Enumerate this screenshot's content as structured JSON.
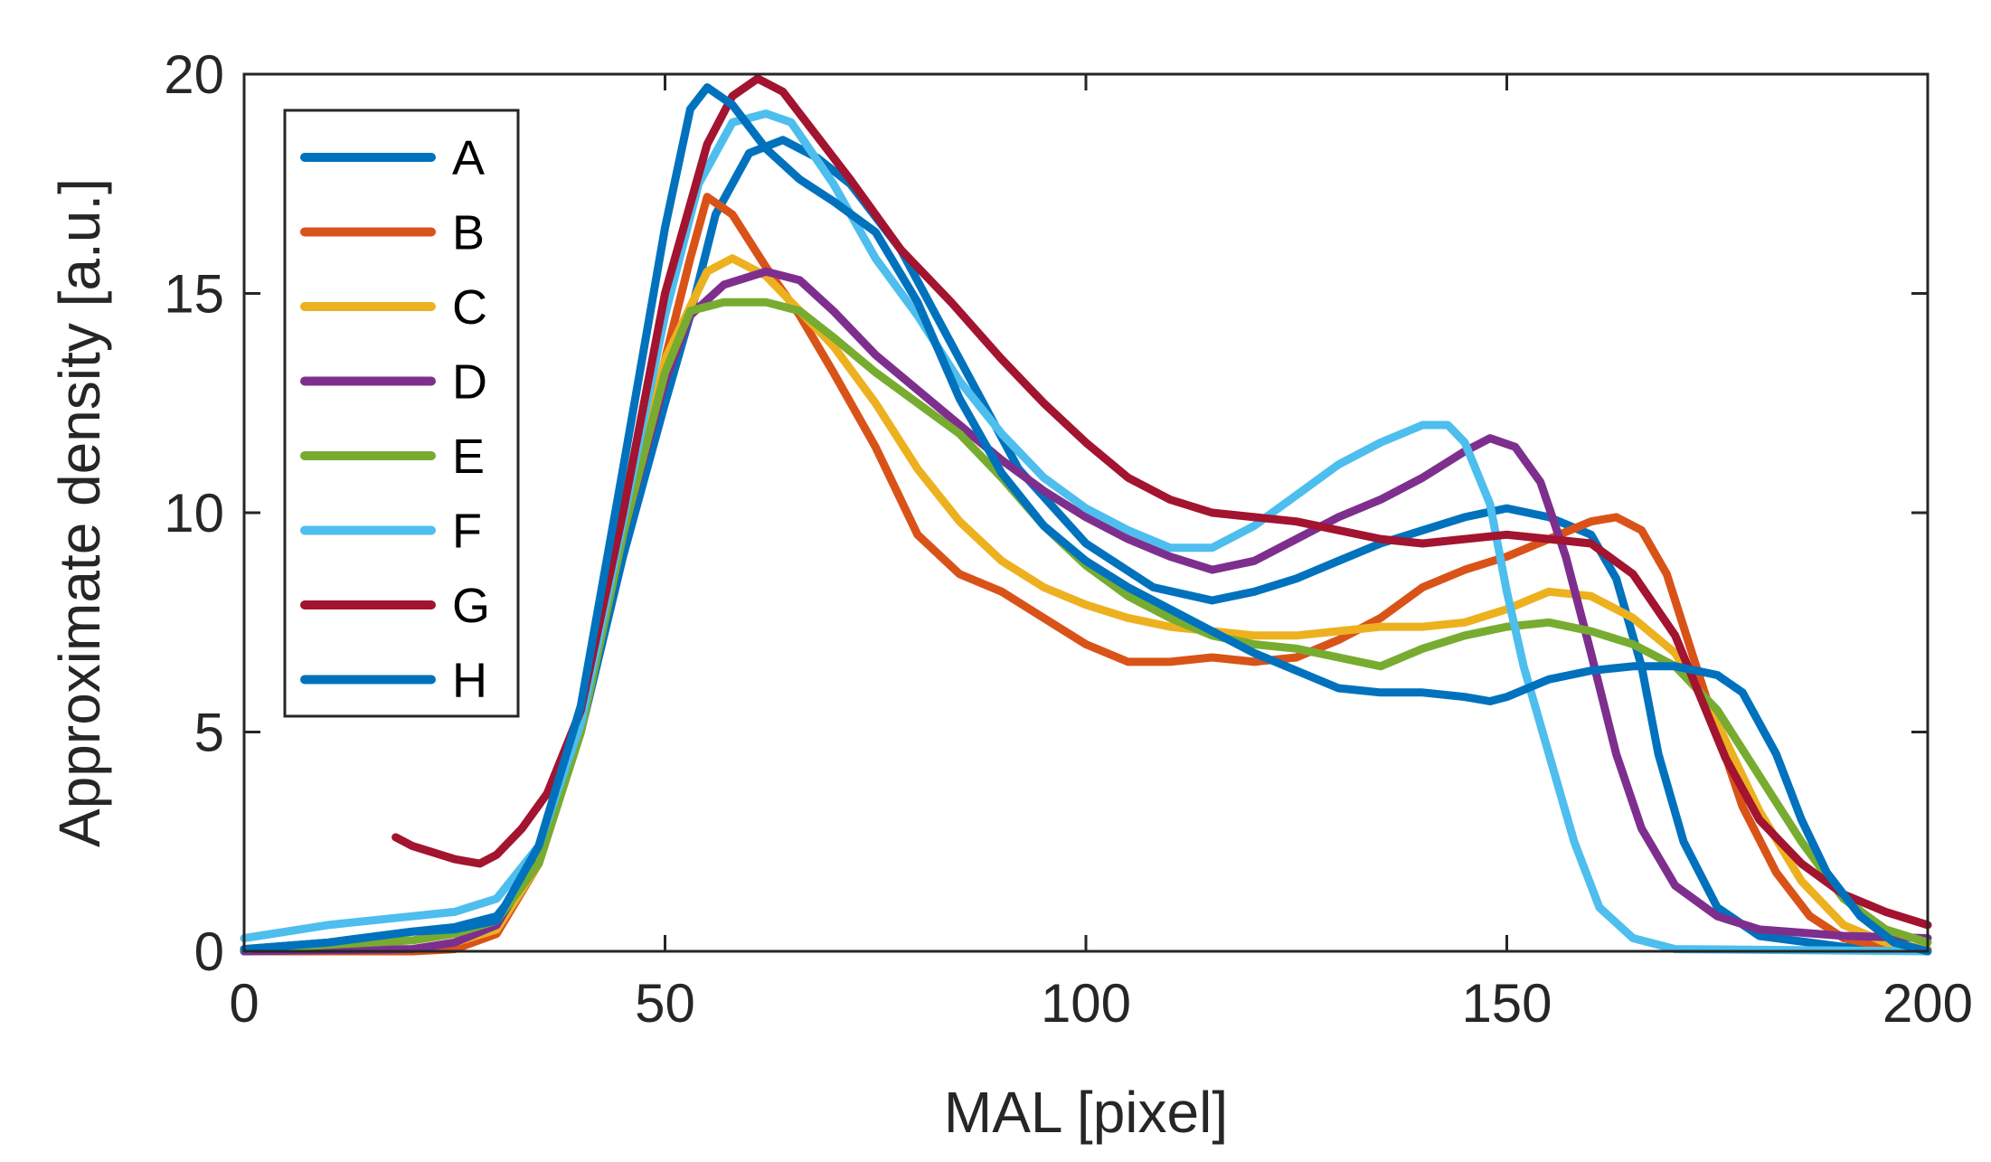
{
  "chart_data": {
    "type": "line",
    "xlabel": "MAL [pixel]",
    "ylabel": "Approximate density [a.u.]",
    "xlim": [
      0,
      200
    ],
    "ylim": [
      0,
      20
    ],
    "xticks": [
      "0",
      "50",
      "100",
      "150",
      "200"
    ],
    "yticks": [
      "0",
      "5",
      "10",
      "15",
      "20"
    ],
    "grid": false,
    "box": true,
    "legend_position": "top-left",
    "series": [
      {
        "name": "A",
        "color": "#0072BD",
        "points": [
          [
            0,
            0.05
          ],
          [
            10,
            0.2
          ],
          [
            20,
            0.45
          ],
          [
            25,
            0.55
          ],
          [
            30,
            0.8
          ],
          [
            35,
            2
          ],
          [
            40,
            5
          ],
          [
            45,
            9
          ],
          [
            50,
            12.5
          ],
          [
            53,
            14.5
          ],
          [
            56,
            16.8
          ],
          [
            60,
            18.2
          ],
          [
            64,
            18.5
          ],
          [
            68,
            18.1
          ],
          [
            72,
            17.5
          ],
          [
            78,
            16
          ],
          [
            85,
            13.5
          ],
          [
            92,
            11
          ],
          [
            100,
            9.3
          ],
          [
            108,
            8.3
          ],
          [
            115,
            8.0
          ],
          [
            120,
            8.2
          ],
          [
            125,
            8.5
          ],
          [
            130,
            8.9
          ],
          [
            135,
            9.3
          ],
          [
            140,
            9.6
          ],
          [
            145,
            9.9
          ],
          [
            150,
            10.1
          ],
          [
            155,
            9.9
          ],
          [
            160,
            9.5
          ],
          [
            163,
            8.5
          ],
          [
            166,
            6.5
          ],
          [
            168,
            4.5
          ],
          [
            171,
            2.5
          ],
          [
            175,
            1.0
          ],
          [
            180,
            0.35
          ],
          [
            190,
            0.1
          ],
          [
            200,
            0.05
          ]
        ]
      },
      {
        "name": "B",
        "color": "#D95319",
        "points": [
          [
            0,
            0
          ],
          [
            20,
            0
          ],
          [
            25,
            0.05
          ],
          [
            30,
            0.4
          ],
          [
            35,
            2
          ],
          [
            40,
            5
          ],
          [
            45,
            9.5
          ],
          [
            50,
            13.5
          ],
          [
            53,
            15.8
          ],
          [
            55,
            17.2
          ],
          [
            58,
            16.8
          ],
          [
            62,
            15.6
          ],
          [
            66,
            14.5
          ],
          [
            70,
            13.2
          ],
          [
            75,
            11.5
          ],
          [
            80,
            9.5
          ],
          [
            85,
            8.6
          ],
          [
            90,
            8.2
          ],
          [
            95,
            7.6
          ],
          [
            100,
            7.0
          ],
          [
            105,
            6.6
          ],
          [
            110,
            6.6
          ],
          [
            115,
            6.7
          ],
          [
            120,
            6.6
          ],
          [
            125,
            6.7
          ],
          [
            130,
            7.1
          ],
          [
            135,
            7.6
          ],
          [
            140,
            8.3
          ],
          [
            145,
            8.7
          ],
          [
            150,
            9.0
          ],
          [
            155,
            9.4
          ],
          [
            160,
            9.8
          ],
          [
            163,
            9.9
          ],
          [
            166,
            9.6
          ],
          [
            169,
            8.6
          ],
          [
            172,
            6.8
          ],
          [
            175,
            5.0
          ],
          [
            178,
            3.3
          ],
          [
            182,
            1.8
          ],
          [
            186,
            0.8
          ],
          [
            190,
            0.3
          ],
          [
            195,
            0.1
          ],
          [
            200,
            0.05
          ]
        ]
      },
      {
        "name": "C",
        "color": "#EDB120",
        "points": [
          [
            0,
            0
          ],
          [
            20,
            0.05
          ],
          [
            25,
            0.2
          ],
          [
            30,
            0.5
          ],
          [
            35,
            2
          ],
          [
            40,
            5
          ],
          [
            45,
            9.5
          ],
          [
            50,
            13.5
          ],
          [
            55,
            15.5
          ],
          [
            58,
            15.8
          ],
          [
            62,
            15.4
          ],
          [
            66,
            14.6
          ],
          [
            70,
            13.8
          ],
          [
            75,
            12.5
          ],
          [
            80,
            11
          ],
          [
            85,
            9.8
          ],
          [
            90,
            8.9
          ],
          [
            95,
            8.3
          ],
          [
            100,
            7.9
          ],
          [
            105,
            7.6
          ],
          [
            110,
            7.4
          ],
          [
            115,
            7.3
          ],
          [
            120,
            7.2
          ],
          [
            125,
            7.2
          ],
          [
            130,
            7.3
          ],
          [
            135,
            7.4
          ],
          [
            140,
            7.4
          ],
          [
            145,
            7.5
          ],
          [
            150,
            7.8
          ],
          [
            155,
            8.2
          ],
          [
            160,
            8.1
          ],
          [
            165,
            7.6
          ],
          [
            170,
            6.8
          ],
          [
            175,
            5.2
          ],
          [
            180,
            3.2
          ],
          [
            185,
            1.6
          ],
          [
            190,
            0.6
          ],
          [
            195,
            0.2
          ],
          [
            200,
            0.05
          ]
        ]
      },
      {
        "name": "D",
        "color": "#7E2F8E",
        "points": [
          [
            0,
            0
          ],
          [
            20,
            0.05
          ],
          [
            25,
            0.2
          ],
          [
            30,
            0.6
          ],
          [
            35,
            2.2
          ],
          [
            40,
            5.2
          ],
          [
            45,
            9.5
          ],
          [
            50,
            13
          ],
          [
            53,
            14.5
          ],
          [
            57,
            15.2
          ],
          [
            62,
            15.5
          ],
          [
            66,
            15.3
          ],
          [
            70,
            14.6
          ],
          [
            75,
            13.6
          ],
          [
            80,
            12.8
          ],
          [
            85,
            12
          ],
          [
            90,
            11.2
          ],
          [
            95,
            10.5
          ],
          [
            100,
            9.9
          ],
          [
            105,
            9.4
          ],
          [
            110,
            9.0
          ],
          [
            115,
            8.7
          ],
          [
            120,
            8.9
          ],
          [
            125,
            9.4
          ],
          [
            130,
            9.9
          ],
          [
            135,
            10.3
          ],
          [
            140,
            10.8
          ],
          [
            145,
            11.4
          ],
          [
            148,
            11.7
          ],
          [
            151,
            11.5
          ],
          [
            154,
            10.7
          ],
          [
            157,
            9.0
          ],
          [
            160,
            6.8
          ],
          [
            163,
            4.5
          ],
          [
            166,
            2.8
          ],
          [
            170,
            1.5
          ],
          [
            175,
            0.8
          ],
          [
            180,
            0.5
          ],
          [
            190,
            0.35
          ],
          [
            200,
            0.3
          ]
        ]
      },
      {
        "name": "E",
        "color": "#77AC30",
        "points": [
          [
            0,
            0.05
          ],
          [
            20,
            0.25
          ],
          [
            25,
            0.4
          ],
          [
            30,
            0.7
          ],
          [
            35,
            2
          ],
          [
            40,
            5
          ],
          [
            45,
            9.5
          ],
          [
            50,
            13.2
          ],
          [
            53,
            14.6
          ],
          [
            57,
            14.8
          ],
          [
            62,
            14.8
          ],
          [
            66,
            14.6
          ],
          [
            70,
            14
          ],
          [
            75,
            13.2
          ],
          [
            80,
            12.5
          ],
          [
            85,
            11.8
          ],
          [
            90,
            10.8
          ],
          [
            95,
            9.7
          ],
          [
            100,
            8.8
          ],
          [
            105,
            8.1
          ],
          [
            110,
            7.6
          ],
          [
            115,
            7.2
          ],
          [
            120,
            7.0
          ],
          [
            125,
            6.9
          ],
          [
            130,
            6.7
          ],
          [
            135,
            6.5
          ],
          [
            140,
            6.9
          ],
          [
            145,
            7.2
          ],
          [
            150,
            7.4
          ],
          [
            155,
            7.5
          ],
          [
            160,
            7.3
          ],
          [
            165,
            7.0
          ],
          [
            170,
            6.5
          ],
          [
            175,
            5.5
          ],
          [
            180,
            4.0
          ],
          [
            185,
            2.5
          ],
          [
            190,
            1.2
          ],
          [
            195,
            0.5
          ],
          [
            200,
            0.2
          ]
        ]
      },
      {
        "name": "F",
        "color": "#4DBEEE",
        "points": [
          [
            0,
            0.3
          ],
          [
            10,
            0.6
          ],
          [
            20,
            0.8
          ],
          [
            25,
            0.9
          ],
          [
            30,
            1.2
          ],
          [
            35,
            2.4
          ],
          [
            40,
            5.2
          ],
          [
            45,
            9.8
          ],
          [
            50,
            14.5
          ],
          [
            54,
            17.5
          ],
          [
            58,
            18.9
          ],
          [
            62,
            19.1
          ],
          [
            65,
            18.9
          ],
          [
            70,
            17.5
          ],
          [
            75,
            15.8
          ],
          [
            80,
            14.5
          ],
          [
            85,
            13
          ],
          [
            90,
            11.8
          ],
          [
            95,
            10.8
          ],
          [
            100,
            10.1
          ],
          [
            105,
            9.6
          ],
          [
            110,
            9.2
          ],
          [
            115,
            9.2
          ],
          [
            120,
            9.7
          ],
          [
            125,
            10.4
          ],
          [
            130,
            11.1
          ],
          [
            135,
            11.6
          ],
          [
            140,
            12.0
          ],
          [
            143,
            12.0
          ],
          [
            145,
            11.6
          ],
          [
            148,
            10.2
          ],
          [
            150,
            8.2
          ],
          [
            152,
            6.5
          ],
          [
            155,
            4.5
          ],
          [
            158,
            2.5
          ],
          [
            161,
            1.0
          ],
          [
            165,
            0.3
          ],
          [
            170,
            0.05
          ],
          [
            200,
            0
          ]
        ]
      },
      {
        "name": "G",
        "color": "#A2142F",
        "points": [
          [
            18,
            2.6
          ],
          [
            20,
            2.4
          ],
          [
            25,
            2.1
          ],
          [
            28,
            2.0
          ],
          [
            30,
            2.2
          ],
          [
            33,
            2.8
          ],
          [
            36,
            3.6
          ],
          [
            40,
            5.5
          ],
          [
            45,
            10
          ],
          [
            50,
            15
          ],
          [
            55,
            18.4
          ],
          [
            58,
            19.5
          ],
          [
            61,
            19.9
          ],
          [
            64,
            19.6
          ],
          [
            68,
            18.6
          ],
          [
            72,
            17.6
          ],
          [
            78,
            16
          ],
          [
            84,
            14.8
          ],
          [
            90,
            13.5
          ],
          [
            95,
            12.5
          ],
          [
            100,
            11.6
          ],
          [
            105,
            10.8
          ],
          [
            110,
            10.3
          ],
          [
            115,
            10.0
          ],
          [
            120,
            9.9
          ],
          [
            125,
            9.8
          ],
          [
            130,
            9.6
          ],
          [
            135,
            9.4
          ],
          [
            140,
            9.3
          ],
          [
            145,
            9.4
          ],
          [
            150,
            9.5
          ],
          [
            155,
            9.4
          ],
          [
            160,
            9.3
          ],
          [
            165,
            8.6
          ],
          [
            170,
            7.2
          ],
          [
            173,
            5.8
          ],
          [
            176,
            4.4
          ],
          [
            180,
            3.0
          ],
          [
            185,
            2.0
          ],
          [
            190,
            1.3
          ],
          [
            195,
            0.9
          ],
          [
            200,
            0.6
          ]
        ]
      },
      {
        "name": "H",
        "color": "#0072BD",
        "points": [
          [
            0,
            0.05
          ],
          [
            10,
            0.2
          ],
          [
            20,
            0.45
          ],
          [
            25,
            0.5
          ],
          [
            30,
            0.7
          ],
          [
            35,
            2.4
          ],
          [
            40,
            5.6
          ],
          [
            45,
            11
          ],
          [
            50,
            16.5
          ],
          [
            53,
            19.2
          ],
          [
            55,
            19.7
          ],
          [
            58,
            19.3
          ],
          [
            62,
            18.3
          ],
          [
            66,
            17.6
          ],
          [
            70,
            17.1
          ],
          [
            75,
            16.4
          ],
          [
            80,
            14.8
          ],
          [
            85,
            12.6
          ],
          [
            90,
            10.9
          ],
          [
            95,
            9.7
          ],
          [
            100,
            8.9
          ],
          [
            105,
            8.3
          ],
          [
            110,
            7.8
          ],
          [
            115,
            7.3
          ],
          [
            120,
            6.8
          ],
          [
            125,
            6.4
          ],
          [
            130,
            6.0
          ],
          [
            135,
            5.9
          ],
          [
            140,
            5.9
          ],
          [
            145,
            5.8
          ],
          [
            148,
            5.7
          ],
          [
            150,
            5.8
          ],
          [
            155,
            6.2
          ],
          [
            160,
            6.4
          ],
          [
            165,
            6.5
          ],
          [
            170,
            6.5
          ],
          [
            175,
            6.3
          ],
          [
            178,
            5.9
          ],
          [
            182,
            4.5
          ],
          [
            185,
            3.0
          ],
          [
            188,
            1.8
          ],
          [
            192,
            0.8
          ],
          [
            196,
            0.2
          ],
          [
            200,
            0
          ]
        ]
      }
    ]
  }
}
